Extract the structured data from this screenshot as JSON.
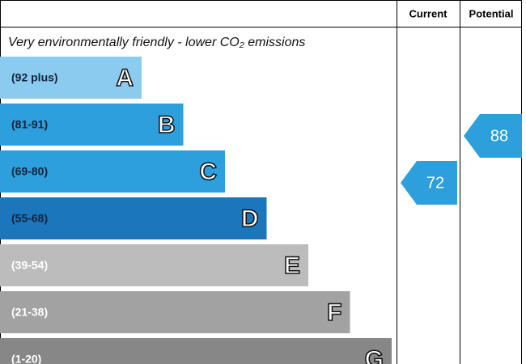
{
  "chart_data": {
    "type": "epc",
    "headers": [
      "Current",
      "Potential"
    ],
    "subtitle": "Very environmentally friendly - lower CO₂ emissions",
    "bands": [
      {
        "label": "(92 plus)",
        "letter": "A",
        "color": "#8ccbf0"
      },
      {
        "label": "(81-91)",
        "letter": "B",
        "color": "#2d9fdc"
      },
      {
        "label": "(69-80)",
        "letter": "C",
        "color": "#2d9fdc"
      },
      {
        "label": "(55-68)",
        "letter": "D",
        "color": "#1b76bc"
      },
      {
        "label": "(39-54)",
        "letter": "E",
        "color": "#bcbcbc"
      },
      {
        "label": "(21-38)",
        "letter": "F",
        "color": "#a2a2a2"
      },
      {
        "label": "(1-20)",
        "letter": "G",
        "color": "#878787"
      }
    ],
    "current": 72,
    "potential": 88
  }
}
